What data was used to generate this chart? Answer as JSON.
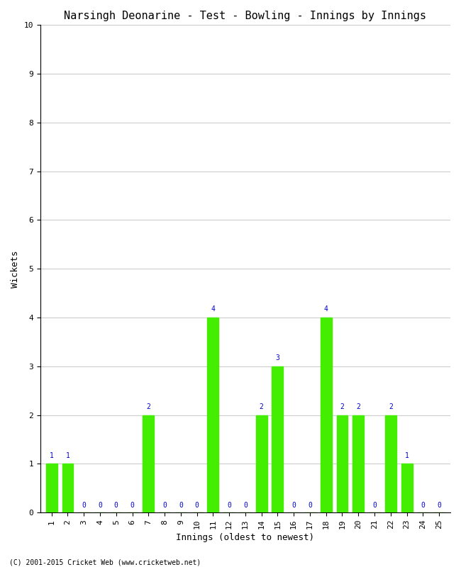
{
  "title": "Narsingh Deonarine - Test - Bowling - Innings by Innings",
  "xlabel": "Innings (oldest to newest)",
  "ylabel": "Wickets",
  "innings": [
    1,
    2,
    3,
    4,
    5,
    6,
    7,
    8,
    9,
    10,
    11,
    12,
    13,
    14,
    15,
    16,
    17,
    18,
    19,
    20,
    21,
    22,
    23,
    24,
    25
  ],
  "wickets": [
    1,
    1,
    0,
    0,
    0,
    0,
    2,
    0,
    0,
    0,
    4,
    0,
    0,
    2,
    3,
    0,
    0,
    4,
    2,
    2,
    0,
    2,
    1,
    0,
    0
  ],
  "bar_color": "#44ee00",
  "label_color": "#0000cc",
  "background_color": "#ffffff",
  "ylim": [
    0,
    10
  ],
  "yticks": [
    0,
    1,
    2,
    3,
    4,
    5,
    6,
    7,
    8,
    9,
    10
  ],
  "title_fontsize": 11,
  "axis_fontsize": 9,
  "label_fontsize": 7,
  "tick_fontsize": 8,
  "footer": "(C) 2001-2015 Cricket Web (www.cricketweb.net)"
}
